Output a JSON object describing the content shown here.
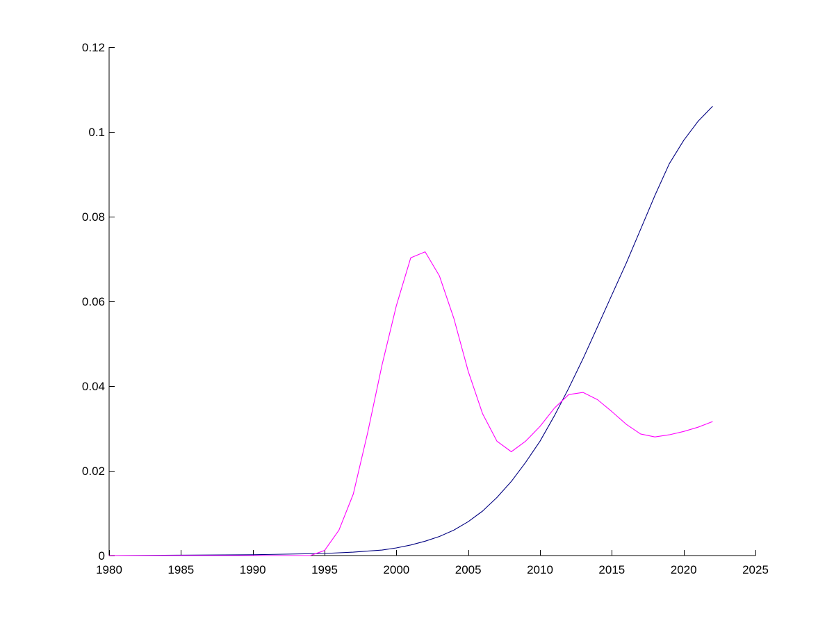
{
  "chart_data": {
    "type": "line",
    "title": "",
    "xlabel": "",
    "ylabel": "",
    "xlim": [
      1980,
      2025
    ],
    "ylim": [
      0,
      0.12
    ],
    "x_ticks": [
      "1980",
      "1985",
      "1990",
      "1995",
      "2000",
      "2005",
      "2010",
      "2015",
      "2020",
      "2025"
    ],
    "y_ticks": [
      "0",
      "0.02",
      "0.04",
      "0.06",
      "0.08",
      "0.1",
      "0.12"
    ],
    "grid": false,
    "legend": "none",
    "series": [
      {
        "color": "#000080",
        "points": [
          [
            1980,
            0.0
          ],
          [
            1985,
            0.0001
          ],
          [
            1990,
            0.0002
          ],
          [
            1995,
            0.0005
          ],
          [
            1997,
            0.0008
          ],
          [
            1999,
            0.0013
          ],
          [
            2000,
            0.0018
          ],
          [
            2001,
            0.0025
          ],
          [
            2002,
            0.0034
          ],
          [
            2003,
            0.0045
          ],
          [
            2004,
            0.006
          ],
          [
            2005,
            0.008
          ],
          [
            2006,
            0.0105
          ],
          [
            2007,
            0.0137
          ],
          [
            2008,
            0.0175
          ],
          [
            2009,
            0.022
          ],
          [
            2010,
            0.027
          ],
          [
            2011,
            0.033
          ],
          [
            2012,
            0.0395
          ],
          [
            2013,
            0.0465
          ],
          [
            2014,
            0.054
          ],
          [
            2015,
            0.0615
          ],
          [
            2016,
            0.069
          ],
          [
            2017,
            0.077
          ],
          [
            2018,
            0.085
          ],
          [
            2019,
            0.0925
          ],
          [
            2020,
            0.098
          ],
          [
            2021,
            0.1025
          ],
          [
            2022,
            0.106
          ]
        ]
      },
      {
        "color": "#ff00ff",
        "points": [
          [
            1980,
            0.0
          ],
          [
            1985,
            0.0
          ],
          [
            1990,
            0.0
          ],
          [
            1994,
            0.0
          ],
          [
            1995,
            0.0012
          ],
          [
            1996,
            0.006
          ],
          [
            1997,
            0.0145
          ],
          [
            1998,
            0.029
          ],
          [
            1999,
            0.045
          ],
          [
            2000,
            0.059
          ],
          [
            2001,
            0.0703
          ],
          [
            2002,
            0.0717
          ],
          [
            2003,
            0.066
          ],
          [
            2004,
            0.056
          ],
          [
            2005,
            0.0435
          ],
          [
            2006,
            0.0335
          ],
          [
            2007,
            0.027
          ],
          [
            2008,
            0.0245
          ],
          [
            2009,
            0.027
          ],
          [
            2010,
            0.0305
          ],
          [
            2011,
            0.0348
          ],
          [
            2012,
            0.038
          ],
          [
            2013,
            0.0385
          ],
          [
            2014,
            0.0368
          ],
          [
            2015,
            0.034
          ],
          [
            2016,
            0.031
          ],
          [
            2017,
            0.0287
          ],
          [
            2018,
            0.028
          ],
          [
            2019,
            0.0285
          ],
          [
            2020,
            0.0293
          ],
          [
            2021,
            0.0303
          ],
          [
            2022,
            0.0316
          ]
        ]
      }
    ]
  }
}
